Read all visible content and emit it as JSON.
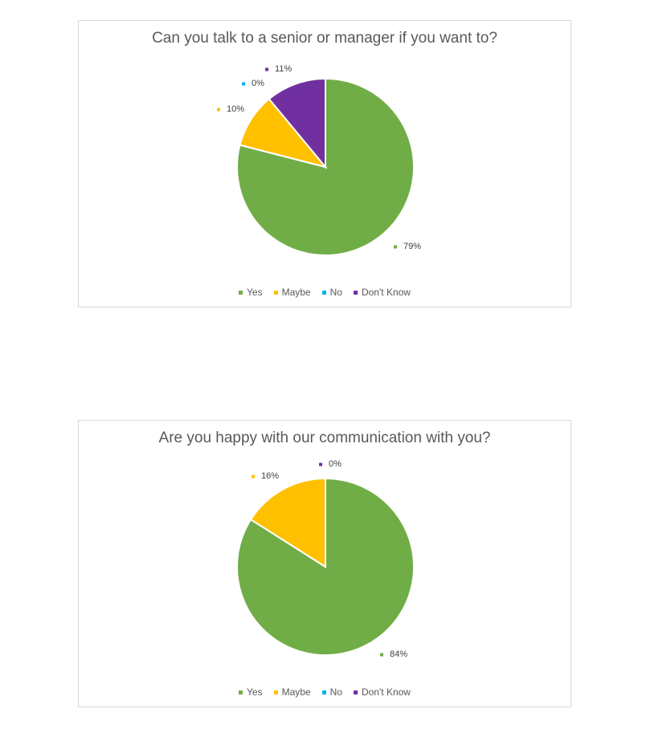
{
  "chart_data": [
    {
      "type": "pie",
      "title": "Can you talk to a senior or manager if you want to?",
      "categories": [
        "Yes",
        "Maybe",
        "No",
        "Don't Know"
      ],
      "values": [
        79,
        10,
        0,
        11
      ],
      "data_labels": [
        "79%",
        "10%",
        "0%",
        "11%"
      ],
      "colors": [
        "#70ad47",
        "#ffc000",
        "#00b0f0",
        "#7030a0"
      ],
      "legend": "bottom"
    },
    {
      "type": "pie",
      "title": "Are you happy with our communication with you?",
      "categories": [
        "Yes",
        "Maybe",
        "No",
        "Don't Know"
      ],
      "values": [
        84,
        16,
        0,
        0
      ],
      "data_labels": [
        "84%",
        "16%",
        null,
        "0%"
      ],
      "colors": [
        "#70ad47",
        "#ffc000",
        "#00b0f0",
        "#7030a0"
      ],
      "legend": "bottom"
    }
  ]
}
